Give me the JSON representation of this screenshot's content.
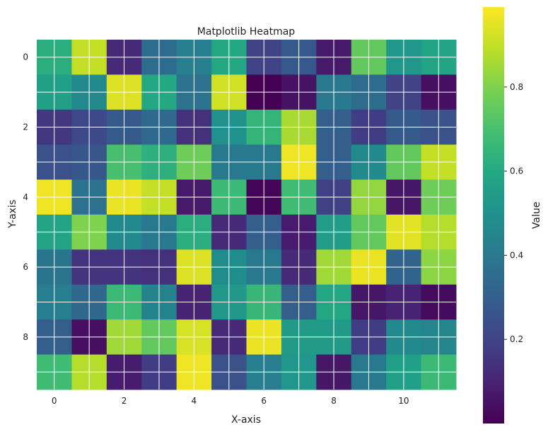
{
  "chart_data": {
    "type": "heatmap",
    "title": "Matplotlib Heatmap",
    "xlabel": "X-axis",
    "ylabel": "Y-axis",
    "colorbar_label": "Value",
    "colormap": "viridis",
    "grid": true,
    "x_ticks": [
      0,
      2,
      4,
      6,
      8,
      10
    ],
    "y_ticks": [
      0,
      2,
      4,
      6,
      8
    ],
    "colorbar_ticks": [
      "0.2",
      "0.4",
      "0.6",
      "0.8"
    ],
    "value_range": [
      0.0,
      0.99
    ],
    "rows": 10,
    "cols": 12,
    "values": [
      [
        0.62,
        0.9,
        0.12,
        0.35,
        0.42,
        0.6,
        0.2,
        0.28,
        0.07,
        0.75,
        0.52,
        0.58
      ],
      [
        0.56,
        0.47,
        0.94,
        0.6,
        0.37,
        0.92,
        0.0,
        0.05,
        0.4,
        0.35,
        0.2,
        0.04
      ],
      [
        0.16,
        0.22,
        0.28,
        0.34,
        0.14,
        0.5,
        0.65,
        0.86,
        0.3,
        0.18,
        0.28,
        0.25
      ],
      [
        0.25,
        0.27,
        0.7,
        0.63,
        0.77,
        0.4,
        0.4,
        0.97,
        0.3,
        0.47,
        0.75,
        0.9
      ],
      [
        0.97,
        0.37,
        0.96,
        0.9,
        0.07,
        0.67,
        0.01,
        0.68,
        0.19,
        0.83,
        0.06,
        0.77
      ],
      [
        0.58,
        0.8,
        0.47,
        0.4,
        0.62,
        0.12,
        0.3,
        0.08,
        0.55,
        0.75,
        0.95,
        0.88
      ],
      [
        0.38,
        0.15,
        0.15,
        0.14,
        0.94,
        0.48,
        0.4,
        0.12,
        0.85,
        0.96,
        0.32,
        0.82
      ],
      [
        0.42,
        0.33,
        0.67,
        0.44,
        0.1,
        0.53,
        0.66,
        0.3,
        0.59,
        0.06,
        0.1,
        0.03
      ],
      [
        0.3,
        0.04,
        0.85,
        0.75,
        0.93,
        0.12,
        0.96,
        0.54,
        0.54,
        0.18,
        0.47,
        0.45
      ],
      [
        0.68,
        0.88,
        0.08,
        0.18,
        0.97,
        0.25,
        0.42,
        0.52,
        0.06,
        0.4,
        0.56,
        0.67
      ]
    ]
  }
}
